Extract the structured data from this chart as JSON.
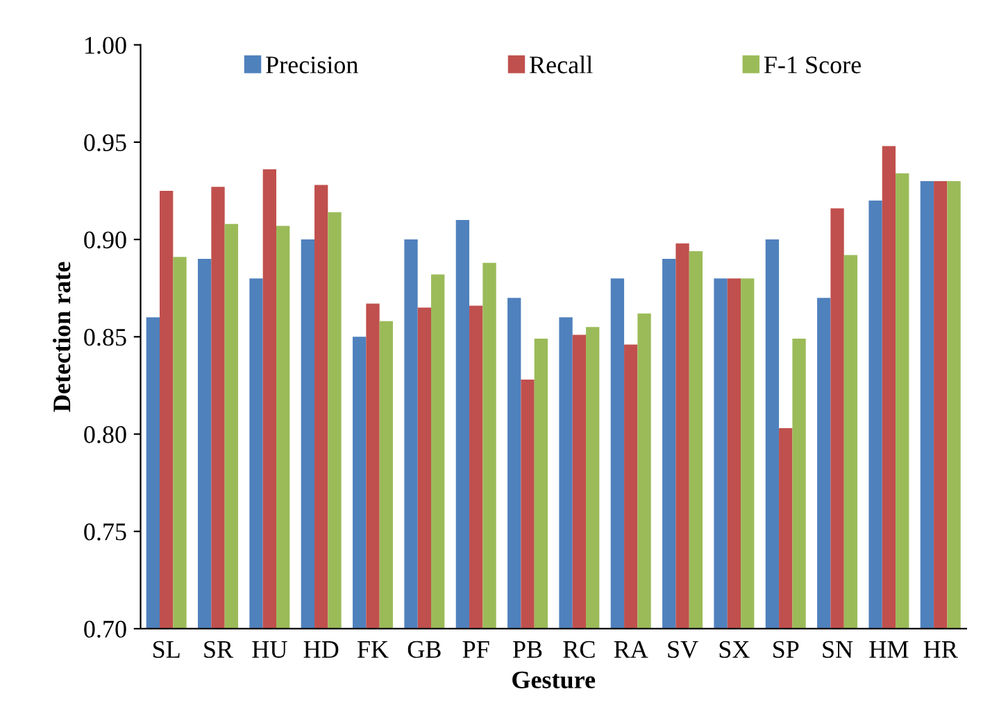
{
  "chart_data": {
    "type": "bar",
    "xlabel": "Gesture",
    "ylabel": "Detection rate",
    "categories": [
      "SL",
      "SR",
      "HU",
      "HD",
      "FK",
      "GB",
      "PF",
      "PB",
      "RC",
      "RA",
      "SV",
      "SX",
      "SP",
      "SN",
      "HM",
      "HR"
    ],
    "series": [
      {
        "name": "Precision",
        "color": "#4f81bd",
        "values": [
          0.86,
          0.89,
          0.88,
          0.9,
          0.85,
          0.9,
          0.91,
          0.87,
          0.86,
          0.88,
          0.89,
          0.88,
          0.9,
          0.87,
          0.92,
          0.93
        ]
      },
      {
        "name": "Recall",
        "color": "#c0504d",
        "values": [
          0.925,
          0.927,
          0.936,
          0.928,
          0.867,
          0.865,
          0.866,
          0.828,
          0.851,
          0.846,
          0.898,
          0.88,
          0.803,
          0.916,
          0.948,
          0.93
        ]
      },
      {
        "name": "F-1 Score",
        "color": "#9bbb59",
        "values": [
          0.891,
          0.908,
          0.907,
          0.914,
          0.858,
          0.882,
          0.888,
          0.849,
          0.855,
          0.862,
          0.894,
          0.88,
          0.849,
          0.892,
          0.934,
          0.93
        ]
      }
    ],
    "ylim": [
      0.7,
      1.0
    ],
    "yticks": [
      {
        "value": 0.7,
        "label": "0.70"
      },
      {
        "value": 0.75,
        "label": "0.75"
      },
      {
        "value": 0.8,
        "label": "0.80"
      },
      {
        "value": 0.85,
        "label": "0.85"
      },
      {
        "value": 0.9,
        "label": "0.90"
      },
      {
        "value": 0.95,
        "label": "0.95"
      },
      {
        "value": 1.0,
        "label": "1.00"
      }
    ],
    "legend": "top",
    "grid": false
  }
}
